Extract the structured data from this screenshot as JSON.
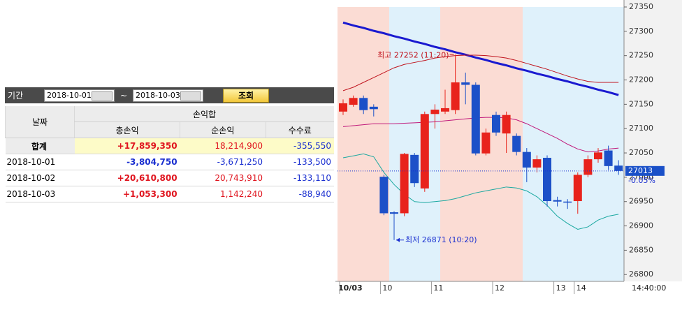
{
  "toolbar": {
    "period_label": "기간",
    "start_date": "2018-10-01",
    "separator": "~",
    "end_date": "2018-10-03",
    "search_button": "조회"
  },
  "table": {
    "date_header": "날짜",
    "group_header": "손익합",
    "columns": [
      "총손익",
      "순손익",
      "수수료"
    ],
    "rows": [
      [
        "합계",
        "+17,859,350",
        "18,214,900",
        "-355,550"
      ],
      [
        "2018-10-01",
        "-3,804,750",
        "-3,671,250",
        "-133,500"
      ],
      [
        "2018-10-02",
        "+20,610,800",
        "20,743,910",
        "-133,110"
      ],
      [
        "2018-10-03",
        "+1,053,300",
        "1,142,240",
        "-88,940"
      ]
    ]
  },
  "chart_data": {
    "type": "candlestick",
    "categories": [
      "10/03",
      null,
      null,
      null,
      "10",
      null,
      null,
      null,
      null,
      "11",
      null,
      null,
      null,
      null,
      null,
      "12",
      null,
      null,
      null,
      null,
      null,
      "13",
      null,
      "14",
      null,
      null,
      null,
      null
    ],
    "time_label": "14:40:00",
    "open": [
      27135,
      27149,
      27163,
      27145,
      27001,
      26928,
      26926,
      27046,
      26977,
      27130,
      27135,
      27138,
      27195,
      27190,
      27049,
      27128,
      27090,
      27085,
      27052,
      27020,
      27040,
      26953,
      26950,
      26951,
      27005,
      27037,
      27055,
      27024
    ],
    "high": [
      27160,
      27168,
      27168,
      27150,
      27005,
      26930,
      27050,
      27050,
      27135,
      27150,
      27180,
      27252,
      27215,
      27195,
      27100,
      27135,
      27135,
      27090,
      27060,
      27045,
      27045,
      26960,
      26955,
      27010,
      27045,
      27060,
      27065,
      27035
    ],
    "low": [
      27128,
      27145,
      27130,
      27125,
      26922,
      26871,
      26920,
      26980,
      26970,
      27100,
      27130,
      27130,
      27150,
      27045,
      27045,
      27085,
      27050,
      27045,
      26990,
      27010,
      26940,
      26940,
      26935,
      26925,
      27000,
      27030,
      27015,
      27005
    ],
    "close": [
      27152,
      27163,
      27138,
      27140,
      26926,
      26925,
      27048,
      26988,
      27130,
      27139,
      27142,
      27195,
      27190,
      27049,
      27092,
      27092,
      27128,
      27052,
      27020,
      27037,
      26951,
      26950,
      26948,
      27005,
      27037,
      27051,
      27023,
      27013
    ],
    "up_color": "#e8231c",
    "down_color": "#1c50c8",
    "lines": [
      {
        "color": "#1a1ad0",
        "values": [
          27318,
          27312,
          27307,
          27301,
          27296,
          27290,
          27285,
          27279,
          27274,
          27268,
          27263,
          27257,
          27252,
          27246,
          27241,
          27235,
          27230,
          27224,
          27219,
          27213,
          27208,
          27202,
          27197,
          27191,
          27186,
          27180,
          27175,
          27169
        ]
      },
      {
        "color": "#c0141e",
        "values": [
          27178,
          27185,
          27195,
          27205,
          27215,
          27225,
          27232,
          27236,
          27240,
          27245,
          27248,
          27250,
          27251,
          27251,
          27250,
          27248,
          27245,
          27240,
          27234,
          27228,
          27222,
          27215,
          27208,
          27202,
          27197,
          27195,
          27195,
          27195
        ]
      },
      {
        "color": "#c0187a",
        "values": [
          27104,
          27106,
          27108,
          27110,
          27110,
          27110,
          27111,
          27112,
          27113,
          27114,
          27116,
          27118,
          27120,
          27122,
          27123,
          27123,
          27122,
          27118,
          27110,
          27100,
          27090,
          27080,
          27068,
          27058,
          27052,
          27054,
          27058,
          27060
        ]
      },
      {
        "color": "#1aa8a0",
        "values": [
          27040,
          27044,
          27048,
          27042,
          27010,
          26985,
          26965,
          26950,
          26948,
          26950,
          26952,
          26956,
          26962,
          26968,
          26972,
          26976,
          26980,
          26978,
          26972,
          26960,
          26942,
          26920,
          26905,
          26893,
          26898,
          26912,
          26920,
          26924
        ]
      }
    ],
    "ylim": [
      26786,
      27350
    ],
    "yticks": [
      26800,
      26850,
      26900,
      26950,
      27000,
      27050,
      27100,
      27150,
      27200,
      27250,
      27300,
      27350
    ],
    "high_label": "최고 27252 (11:20)",
    "low_label": "최저 26871 (10:20)",
    "last_price": 27013,
    "change": "-0.05%"
  }
}
